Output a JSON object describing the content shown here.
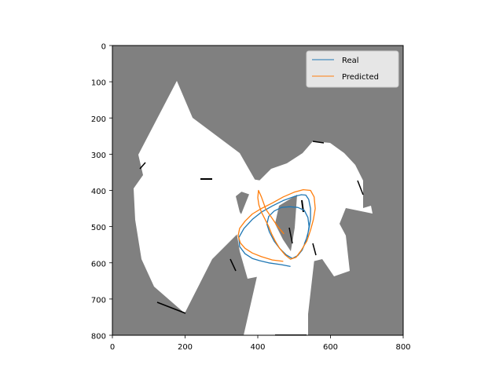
{
  "chart_data": {
    "type": "line",
    "title": "",
    "xlabel": "",
    "ylabel": "",
    "xlim": [
      0,
      800
    ],
    "ylim": [
      800,
      0
    ],
    "y_inverted": true,
    "grid": false,
    "background": "occupancy-grid-map",
    "x_ticks": [
      0,
      200,
      400,
      600,
      800
    ],
    "y_ticks": [
      0,
      100,
      200,
      300,
      400,
      500,
      600,
      700,
      800
    ],
    "legend": {
      "position": "top-right",
      "entries": [
        "Real",
        "Predicted"
      ]
    },
    "colors": {
      "unknown": "#808080",
      "free": "#ffffff",
      "obstacle": "#000000",
      "real": "#1f77b4",
      "predicted": "#ff7f0e"
    },
    "series": [
      {
        "name": "Real",
        "x": [
          490,
          465,
          430,
          405,
          385,
          365,
          350,
          348,
          362,
          385,
          410,
          440,
          470,
          500,
          520,
          532,
          540,
          545,
          545,
          540,
          532,
          522,
          510,
          495,
          478,
          460,
          445,
          432,
          425,
          430,
          445,
          465,
          488,
          510,
          528,
          538,
          541,
          537,
          528
        ],
        "y": [
          610,
          605,
          600,
          594,
          588,
          575,
          555,
          530,
          505,
          480,
          460,
          443,
          428,
          417,
          412,
          413,
          425,
          450,
          480,
          510,
          540,
          565,
          580,
          588,
          578,
          560,
          540,
          515,
          493,
          472,
          457,
          447,
          445,
          447,
          455,
          475,
          500,
          525,
          548
        ]
      },
      {
        "name": "Predicted",
        "x": [
          470,
          440,
          410,
          385,
          365,
          352,
          346,
          350,
          365,
          385,
          410,
          440,
          470,
          500,
          525,
          545,
          555,
          558,
          553,
          545,
          535,
          520,
          505,
          490,
          475,
          460,
          448,
          438,
          430,
          420,
          410,
          403,
          400,
          402,
          410,
          422,
          438,
          455,
          472
        ],
        "y": [
          596,
          592,
          583,
          573,
          560,
          545,
          525,
          505,
          485,
          465,
          450,
          435,
          418,
          405,
          398,
          400,
          418,
          450,
          480,
          510,
          540,
          565,
          585,
          590,
          578,
          560,
          540,
          520,
          500,
          480,
          460,
          440,
          420,
          400,
          418,
          452,
          475,
          500,
          520
        ]
      }
    ]
  }
}
